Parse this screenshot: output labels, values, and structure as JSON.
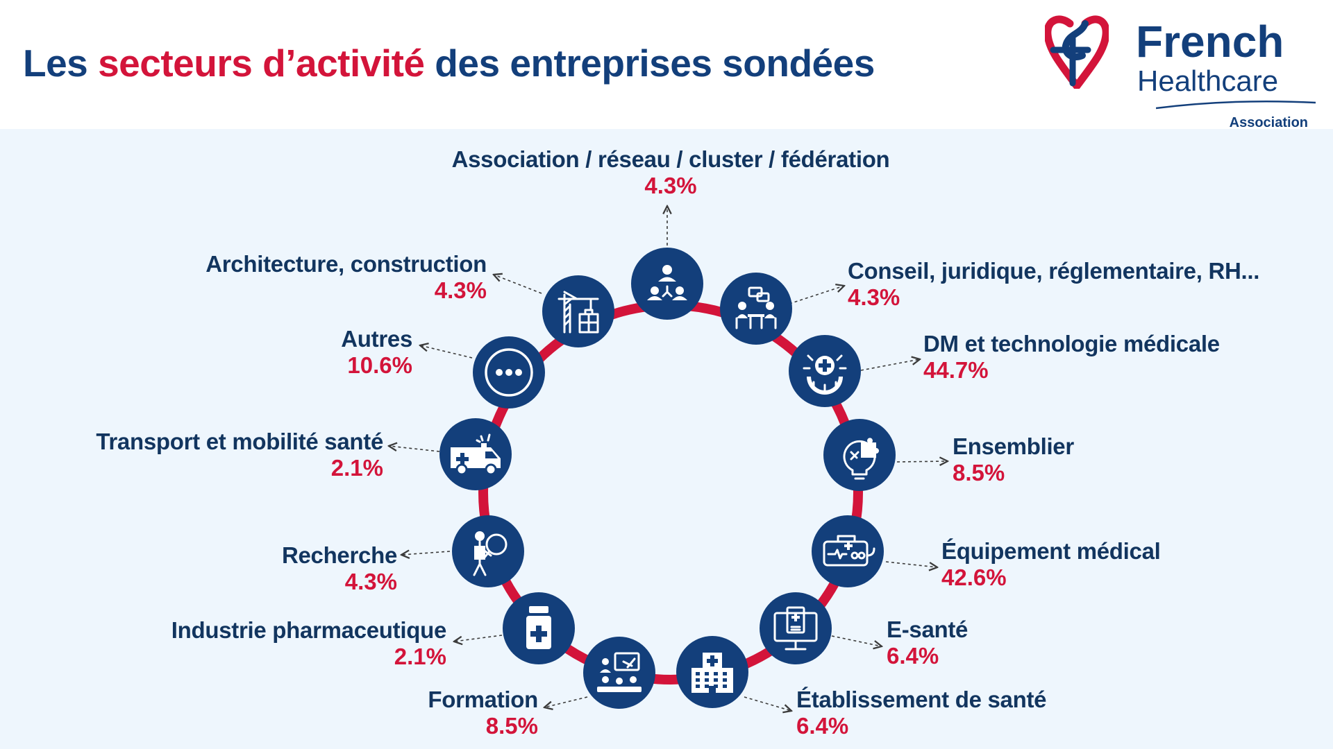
{
  "header": {
    "title_part1": "Les ",
    "title_accent": "secteurs d’activité",
    "title_part2": " des entreprises sondées",
    "colors": {
      "primary": "#133f7b",
      "accent": "#d3143a",
      "panel": "#eef6fd"
    }
  },
  "logo": {
    "line1": "French",
    "line2": "Healthcare",
    "line3": "Association",
    "icon": "heart-cross-logo-icon"
  },
  "sectors": [
    {
      "name": "Association / réseau / cluster / fédération",
      "percent": "4.3%",
      "icon": "network-people-icon"
    },
    {
      "name": "Conseil, juridique, réglementaire, RH...",
      "percent": "4.3%",
      "icon": "consulting-meeting-icon"
    },
    {
      "name": "DM et technologie médicale",
      "percent": "44.7%",
      "icon": "medical-gear-icon"
    },
    {
      "name": "Ensemblier",
      "percent": "8.5%",
      "icon": "puzzle-bulb-icon"
    },
    {
      "name": "Équipement médical",
      "percent": "42.6%",
      "icon": "medical-device-icon"
    },
    {
      "name": "E-santé",
      "percent": "6.4%",
      "icon": "telehealth-monitor-icon"
    },
    {
      "name": "Établissement de santé",
      "percent": "6.4%",
      "icon": "hospital-building-icon"
    },
    {
      "name": "Formation",
      "percent": "8.5%",
      "icon": "training-class-icon"
    },
    {
      "name": "Industrie pharmaceutique",
      "percent": "2.1%",
      "icon": "pill-bottle-icon"
    },
    {
      "name": "Recherche",
      "percent": "4.3%",
      "icon": "researcher-magnifier-icon"
    },
    {
      "name": "Transport et mobilité santé",
      "percent": "2.1%",
      "icon": "ambulance-icon"
    },
    {
      "name": "Autres",
      "percent": "10.6%",
      "icon": "more-dots-icon"
    },
    {
      "name": "Architecture, construction",
      "percent": "4.3%",
      "icon": "construction-crane-icon"
    }
  ]
}
